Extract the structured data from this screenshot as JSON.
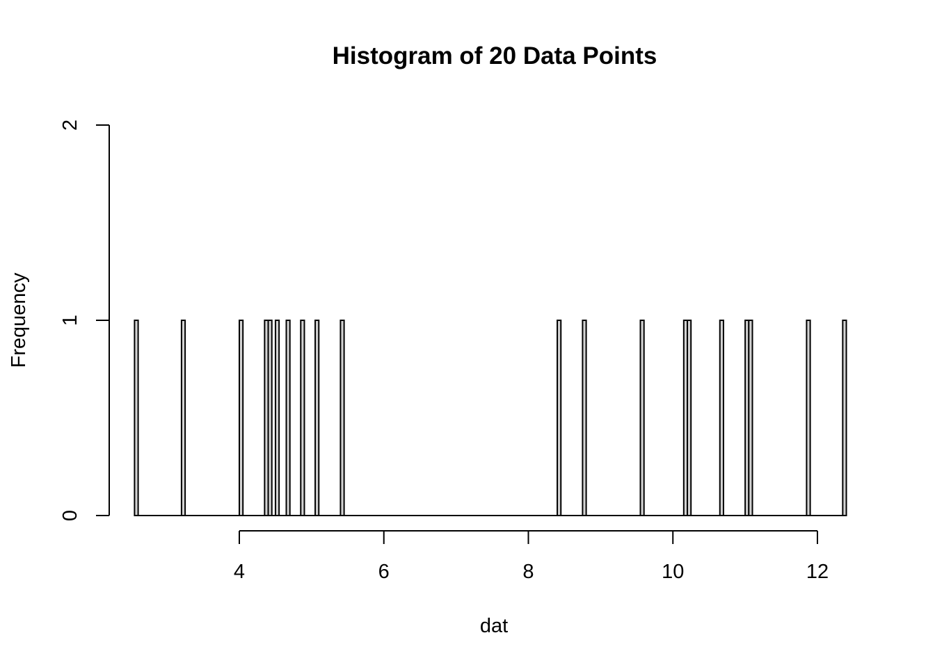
{
  "chart_data": {
    "type": "bar",
    "title": "Histogram of 20 Data Points",
    "xlabel": "dat",
    "ylabel": "Frequency",
    "x_ticks": [
      4,
      6,
      8,
      10,
      12
    ],
    "y_ticks": [
      0,
      1,
      2
    ],
    "xlim": [
      2.6,
      12.5
    ],
    "ylim": [
      0,
      2
    ],
    "bin_width": 0.05,
    "bins": [
      {
        "start": 2.55,
        "count": 1
      },
      {
        "start": 3.2,
        "count": 1
      },
      {
        "start": 4.0,
        "count": 1
      },
      {
        "start": 4.35,
        "count": 1
      },
      {
        "start": 4.4,
        "count": 1
      },
      {
        "start": 4.5,
        "count": 1
      },
      {
        "start": 4.65,
        "count": 1
      },
      {
        "start": 4.85,
        "count": 1
      },
      {
        "start": 5.05,
        "count": 1
      },
      {
        "start": 5.4,
        "count": 1
      },
      {
        "start": 8.4,
        "count": 1
      },
      {
        "start": 8.75,
        "count": 1
      },
      {
        "start": 9.55,
        "count": 1
      },
      {
        "start": 10.15,
        "count": 1
      },
      {
        "start": 10.2,
        "count": 1
      },
      {
        "start": 10.65,
        "count": 1
      },
      {
        "start": 11.0,
        "count": 1
      },
      {
        "start": 11.05,
        "count": 1
      },
      {
        "start": 11.85,
        "count": 1
      },
      {
        "start": 12.35,
        "count": 1
      }
    ],
    "grid": false,
    "bar_color": "#d3d3d3",
    "edge_color": "#000000"
  }
}
